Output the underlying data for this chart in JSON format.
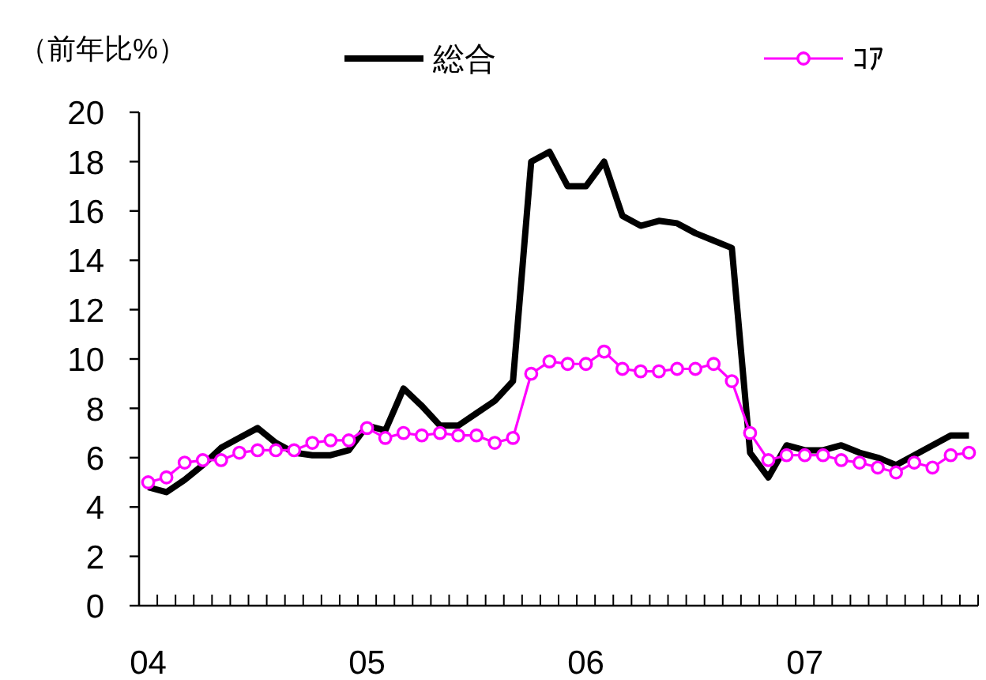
{
  "chart_data": {
    "type": "line",
    "ylabel": "（前年比%）",
    "categories": [
      "04",
      null,
      null,
      null,
      null,
      null,
      null,
      null,
      null,
      null,
      null,
      null,
      "05",
      null,
      null,
      null,
      null,
      null,
      null,
      null,
      null,
      null,
      null,
      null,
      "06",
      null,
      null,
      null,
      null,
      null,
      null,
      null,
      null,
      null,
      null,
      null,
      "07",
      null,
      null,
      null,
      null,
      null,
      null,
      null,
      null,
      null
    ],
    "ylim": [
      0,
      20
    ],
    "yticks": [
      0,
      2,
      4,
      6,
      8,
      10,
      12,
      14,
      16,
      18,
      20
    ],
    "grid": false,
    "legend": "top",
    "series": [
      {
        "name": "総合",
        "color": "#000000",
        "marker": "none",
        "values": [
          4.8,
          4.6,
          5.1,
          5.7,
          6.4,
          6.8,
          7.2,
          6.6,
          6.2,
          6.1,
          6.1,
          6.3,
          7.3,
          7.1,
          8.8,
          8.1,
          7.3,
          7.3,
          7.8,
          8.3,
          9.1,
          18.0,
          18.4,
          17.0,
          17.0,
          18.0,
          15.8,
          15.4,
          15.6,
          15.5,
          15.1,
          14.8,
          14.5,
          6.2,
          5.2,
          6.5,
          6.3,
          6.3,
          6.5,
          6.2,
          6.0,
          5.7,
          6.1,
          6.5,
          6.9,
          6.9
        ]
      },
      {
        "name": "ｺｱ",
        "color": "#ff00ff",
        "marker": "circle",
        "values": [
          5.0,
          5.2,
          5.8,
          5.9,
          5.9,
          6.2,
          6.3,
          6.3,
          6.3,
          6.6,
          6.7,
          6.7,
          7.2,
          6.8,
          7.0,
          6.9,
          7.0,
          6.9,
          6.9,
          6.6,
          6.8,
          9.4,
          9.9,
          9.8,
          9.8,
          10.3,
          9.6,
          9.5,
          9.5,
          9.6,
          9.6,
          9.8,
          9.1,
          7.0,
          5.9,
          6.1,
          6.1,
          6.1,
          5.9,
          5.8,
          5.6,
          5.4,
          5.8,
          5.6,
          6.1,
          6.2
        ]
      }
    ]
  }
}
